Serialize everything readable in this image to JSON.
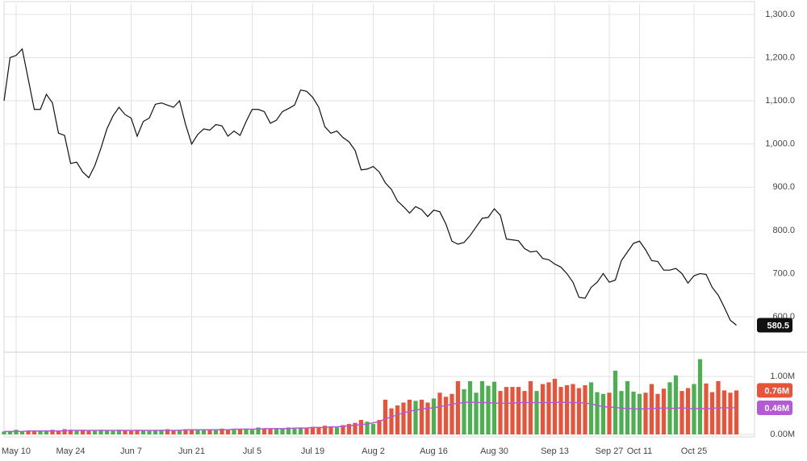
{
  "chart_data": [
    {
      "type": "line",
      "series": [
        {
          "values": [
            1100,
            1200,
            1205,
            1220,
            1150,
            1080,
            1080,
            1115,
            1095,
            1025,
            1020,
            955,
            958,
            935,
            922,
            950,
            990,
            1035,
            1065,
            1085,
            1068,
            1060,
            1018,
            1052,
            1060,
            1092,
            1095,
            1090,
            1085,
            1100,
            1045,
            1000,
            1022,
            1035,
            1032,
            1045,
            1042,
            1018,
            1030,
            1020,
            1052,
            1080,
            1080,
            1075,
            1048,
            1055,
            1075,
            1082,
            1090,
            1125,
            1122,
            1108,
            1085,
            1040,
            1025,
            1030,
            1015,
            1005,
            985,
            940,
            942,
            948,
            935,
            910,
            895,
            868,
            855,
            840,
            855,
            848,
            832,
            847,
            843,
            815,
            775,
            768,
            772,
            788,
            808,
            828,
            830,
            850,
            835,
            780,
            778,
            776,
            758,
            750,
            752,
            735,
            732,
            722,
            715,
            700,
            680,
            645,
            643,
            668,
            680,
            700,
            680,
            685,
            730,
            750,
            770,
            775,
            755,
            730,
            728,
            708,
            708,
            712,
            700,
            678,
            695,
            700,
            698,
            668,
            650,
            622,
            592,
            580.5
          ],
          "color": "#111111",
          "last_label": "580.5",
          "label_color": "#111111"
        }
      ],
      "ylim": [
        518,
        1324
      ],
      "yticks": [
        {
          "value": 600,
          "label": "600.0"
        },
        {
          "value": 700,
          "label": "700.0"
        },
        {
          "value": 800,
          "label": "800.0"
        },
        {
          "value": 900,
          "label": "900.0"
        },
        {
          "value": 1000,
          "label": "1,000.0"
        },
        {
          "value": 1100,
          "label": "1,100.0"
        },
        {
          "value": 1200,
          "label": "1,200.0"
        },
        {
          "value": 1300,
          "label": "1,300.0"
        }
      ],
      "grid": true
    },
    {
      "type": "bar",
      "categories": [
        null,
        null,
        "May 10",
        null,
        null,
        null,
        null,
        null,
        null,
        null,
        null,
        "May 24",
        null,
        null,
        null,
        null,
        null,
        null,
        null,
        null,
        null,
        "Jun 7",
        null,
        null,
        null,
        null,
        null,
        null,
        null,
        null,
        null,
        "Jun 21",
        null,
        null,
        null,
        null,
        null,
        null,
        null,
        null,
        null,
        "Jul 5",
        null,
        null,
        null,
        null,
        null,
        null,
        null,
        null,
        null,
        "Jul 19",
        null,
        null,
        null,
        null,
        null,
        null,
        null,
        null,
        null,
        "Aug 2",
        null,
        null,
        null,
        null,
        null,
        null,
        null,
        null,
        null,
        "Aug 16",
        null,
        null,
        null,
        null,
        null,
        null,
        null,
        null,
        null,
        "Aug 30",
        null,
        null,
        null,
        null,
        null,
        null,
        null,
        null,
        null,
        "Sep 13",
        null,
        null,
        null,
        null,
        null,
        null,
        null,
        null,
        "Sep 27",
        null,
        null,
        null,
        null,
        "Oct 11",
        null,
        null,
        null,
        null,
        null,
        null,
        null,
        null,
        "Oct 25",
        null,
        null,
        null,
        null,
        null,
        null,
        null
      ],
      "series": [
        {
          "type": "bar",
          "values": [
            0.05,
            0.06,
            0.08,
            0.05,
            0.06,
            0.07,
            0.05,
            0.06,
            0.08,
            0.07,
            0.09,
            0.08,
            0.07,
            0.08,
            0.06,
            0.07,
            0.08,
            0.07,
            0.06,
            0.08,
            0.07,
            0.06,
            0.08,
            0.07,
            0.06,
            0.07,
            0.08,
            0.09,
            0.07,
            0.08,
            0.09,
            0.08,
            0.07,
            0.08,
            0.09,
            0.08,
            0.1,
            0.09,
            0.08,
            0.09,
            0.1,
            0.08,
            0.12,
            0.09,
            0.1,
            0.11,
            0.1,
            0.12,
            0.1,
            0.12,
            0.11,
            0.13,
            0.12,
            0.15,
            0.14,
            0.12,
            0.16,
            0.18,
            0.2,
            0.25,
            0.22,
            0.18,
            0.25,
            0.6,
            0.45,
            0.5,
            0.55,
            0.6,
            0.58,
            0.6,
            0.55,
            0.62,
            0.72,
            0.65,
            0.7,
            0.92,
            0.78,
            0.92,
            0.72,
            0.92,
            0.84,
            0.91,
            0.75,
            0.82,
            0.82,
            0.82,
            0.75,
            0.92,
            0.75,
            0.87,
            0.9,
            0.96,
            0.82,
            0.85,
            0.87,
            0.8,
            0.85,
            0.9,
            0.73,
            0.7,
            0.72,
            1.1,
            0.75,
            0.92,
            0.74,
            0.7,
            0.72,
            0.87,
            0.7,
            0.79,
            0.9,
            1.02,
            0.75,
            0.8,
            0.87,
            1.3,
            0.88,
            0.73,
            0.92,
            0.76,
            0.72,
            0.76
          ],
          "up_color": "#4caf50",
          "down_color": "#e8533a",
          "last_label": "0.76M"
        },
        {
          "type": "line",
          "values": [
            0.05,
            0.05,
            0.05,
            0.05,
            0.06,
            0.06,
            0.06,
            0.06,
            0.06,
            0.06,
            0.06,
            0.07,
            0.07,
            0.07,
            0.07,
            0.07,
            0.07,
            0.07,
            0.07,
            0.07,
            0.07,
            0.07,
            0.07,
            0.07,
            0.07,
            0.07,
            0.07,
            0.07,
            0.07,
            0.07,
            0.08,
            0.08,
            0.08,
            0.08,
            0.08,
            0.08,
            0.08,
            0.08,
            0.09,
            0.09,
            0.09,
            0.09,
            0.09,
            0.1,
            0.1,
            0.1,
            0.1,
            0.1,
            0.11,
            0.11,
            0.11,
            0.12,
            0.12,
            0.12,
            0.13,
            0.13,
            0.14,
            0.15,
            0.16,
            0.17,
            0.18,
            0.2,
            0.22,
            0.27,
            0.3,
            0.34,
            0.37,
            0.4,
            0.42,
            0.44,
            0.45,
            0.46,
            0.48,
            0.5,
            0.52,
            0.54,
            0.55,
            0.56,
            0.55,
            0.55,
            0.55,
            0.54,
            0.54,
            0.54,
            0.54,
            0.55,
            0.55,
            0.55,
            0.55,
            0.55,
            0.55,
            0.55,
            0.56,
            0.55,
            0.55,
            0.55,
            0.54,
            0.53,
            0.5,
            0.48,
            0.47,
            0.47,
            0.45,
            0.45,
            0.44,
            0.44,
            0.44,
            0.45,
            0.45,
            0.46,
            0.45,
            0.45,
            0.46,
            0.45,
            0.44,
            0.45,
            0.44,
            0.45,
            0.46,
            0.46,
            0.46,
            0.46
          ],
          "color": "#b35ad6",
          "last_label": "0.46M"
        }
      ],
      "ylim": [
        0,
        1.42
      ],
      "yticks": [
        {
          "value": 0,
          "label": "0.00M"
        },
        {
          "value": 1,
          "label": "1.00M"
        }
      ],
      "grid": true
    }
  ]
}
